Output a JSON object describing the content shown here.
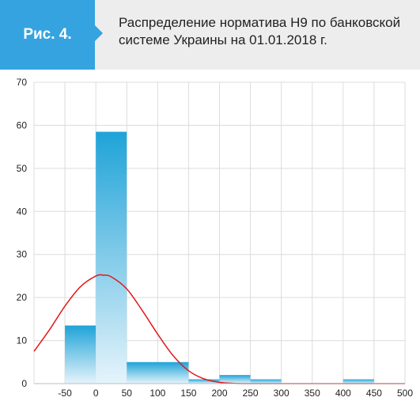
{
  "header": {
    "figure_label": "Рис. 4.",
    "title_line1": "Распределение норматива Н9 по банковской",
    "title_line2": "системе Украины на 01.01.2018 г."
  },
  "colors": {
    "tag": "#35a3e0",
    "header_bg": "#ededed",
    "bar_top": "#1fa3d8",
    "bar_bottom": "#e6f4fb",
    "curve": "#e01919",
    "grid": "#dcdcdc"
  },
  "chart_data": {
    "type": "bar",
    "subtype": "histogram with normal curve",
    "title": "Распределение норматива Н9 по банковской системе Украины на 01.01.2018 г.",
    "xlabel": "",
    "ylabel": "",
    "xlim": [
      -100,
      500
    ],
    "ylim": [
      0,
      70
    ],
    "x_ticks": [
      "-50",
      "0",
      "50",
      "100",
      "150",
      "200",
      "250",
      "300",
      "350",
      "400",
      "450",
      "500"
    ],
    "y_ticks": [
      "0",
      "10",
      "20",
      "30",
      "40",
      "50",
      "60",
      "70"
    ],
    "grid": true,
    "bins": [
      {
        "from": -50,
        "to": 0,
        "value": 13.5
      },
      {
        "from": 0,
        "to": 50,
        "value": 58.5
      },
      {
        "from": 50,
        "to": 150,
        "value": 5
      },
      {
        "from": 150,
        "to": 200,
        "value": 1
      },
      {
        "from": 200,
        "to": 250,
        "value": 2
      },
      {
        "from": 250,
        "to": 300,
        "value": 1
      },
      {
        "from": 300,
        "to": 400,
        "value": 0
      },
      {
        "from": 400,
        "to": 450,
        "value": 1
      }
    ],
    "curve": {
      "name": "normal distribution",
      "x": [
        -100,
        -75,
        -50,
        -25,
        0,
        12,
        25,
        50,
        75,
        100,
        125,
        150,
        175,
        200,
        225,
        250,
        300,
        350,
        400,
        450,
        500
      ],
      "y": [
        7.5,
        12.5,
        18,
        22.5,
        25,
        25.2,
        24.8,
        22,
        17,
        11.5,
        6.5,
        3,
        1.1,
        0.3,
        0.05,
        0,
        0,
        0,
        0,
        0,
        0
      ]
    }
  }
}
